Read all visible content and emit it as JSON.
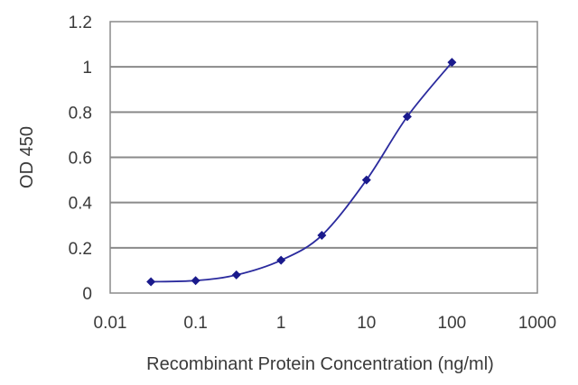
{
  "chart_data": {
    "type": "line",
    "title": "",
    "xlabel": "Recombinant Protein Concentration (ng/ml)",
    "ylabel": "OD 450",
    "x_scale": "log",
    "xlim": [
      0.01,
      1000
    ],
    "ylim": [
      0,
      1.2
    ],
    "x_ticks": [
      "0.01",
      "0.1",
      "1",
      "10",
      "100",
      "1000"
    ],
    "y_ticks": [
      "0",
      "0.2",
      "0.4",
      "0.6",
      "0.8",
      "1",
      "1.2"
    ],
    "grid": "horizontal",
    "series": [
      {
        "x": [
          0.03,
          0.1,
          0.3,
          1,
          3,
          10,
          30,
          100
        ],
        "y": [
          0.05,
          0.055,
          0.08,
          0.145,
          0.255,
          0.5,
          0.78,
          1.02
        ]
      }
    ],
    "colors": {
      "series": "#2b2b9e",
      "marker": "#1a1a8c",
      "grid": "#8a8a8a",
      "frame": "#8a8a8a"
    }
  }
}
